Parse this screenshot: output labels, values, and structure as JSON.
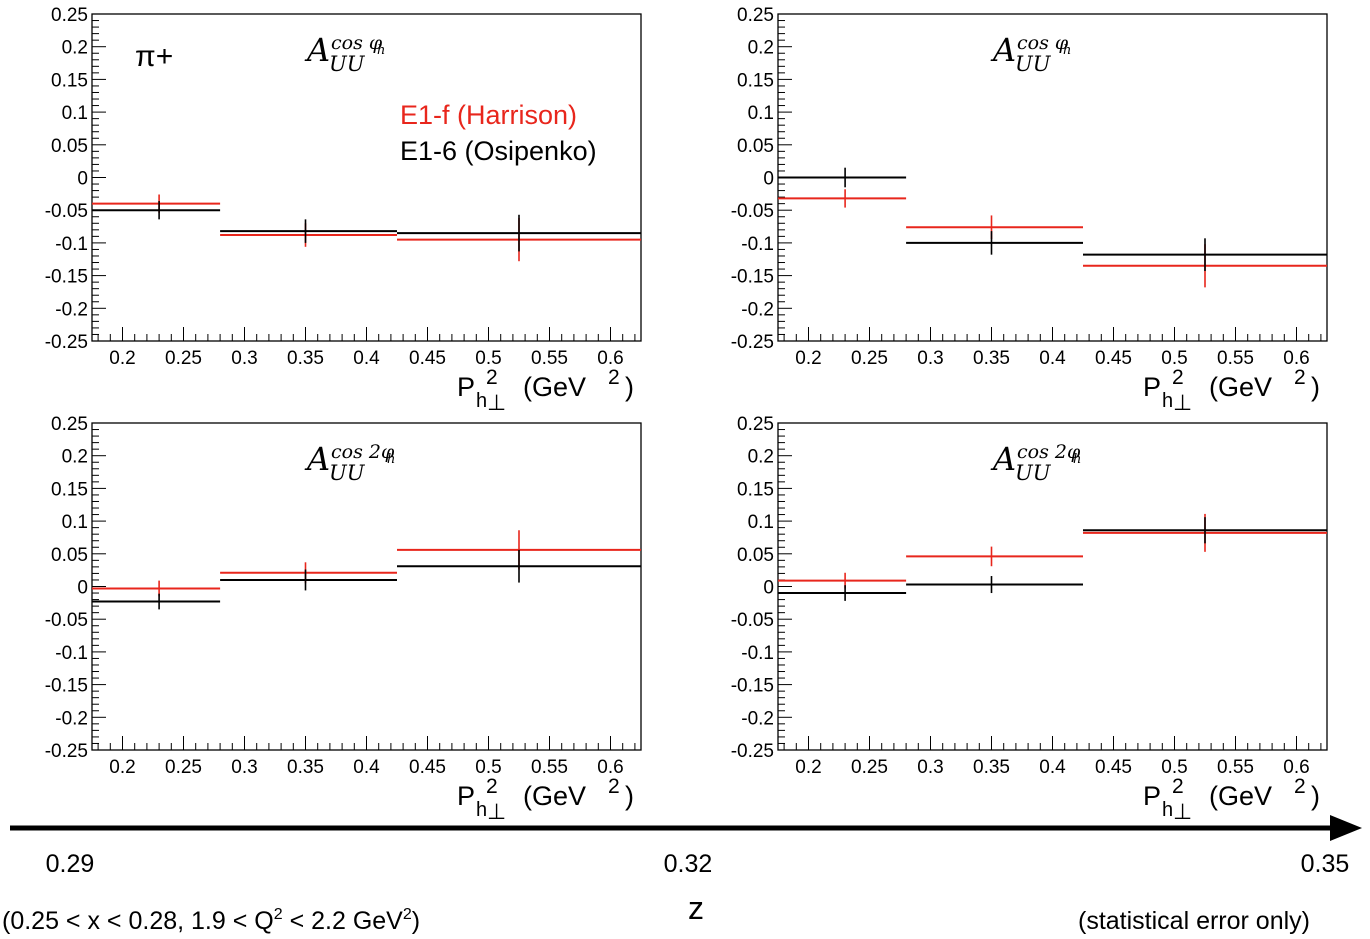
{
  "figure": {
    "particle_label": "π+",
    "legend": [
      {
        "name": "E1-f (Harrison)",
        "color": "#e8261c"
      },
      {
        "name": "E1-6 (Osipenko)",
        "color": "#000000"
      }
    ],
    "z_axis": {
      "ticks": [
        "0.29",
        "0.32",
        "0.35"
      ],
      "label": "z"
    },
    "kinematics_note": {
      "pre": "(0.25 < x < 0.28, 1.9 < Q",
      "sup1": "2",
      "mid": " < 2.2 GeV",
      "sup2": "2",
      "post": ")"
    },
    "error_note": "(statistical error only)",
    "colors": {
      "red": "#e8261c",
      "black": "#000000"
    }
  },
  "chart_data": [
    {
      "type": "scatter",
      "panel": "top-left",
      "z": "0.29",
      "title": {
        "base": "A",
        "sub": "UU",
        "sup": "cos φ",
        "sup_sub": "h"
      },
      "xlabel": {
        "p": "P",
        "p_sub": "h",
        "p_perp": "⊥",
        "p_sup": "2",
        "units": "(GeV",
        "units_sup": "2",
        "close": ")"
      },
      "xlim": [
        0.175,
        0.625
      ],
      "ylim": [
        -0.25,
        0.25
      ],
      "x_ticks": [
        "0.2",
        "0.25",
        "0.3",
        "0.35",
        "0.4",
        "0.45",
        "0.5",
        "0.55",
        "0.6"
      ],
      "y_ticks": [
        "0.25",
        "0.2",
        "0.15",
        "0.1",
        "0.05",
        "0",
        "-0.05",
        "-0.1",
        "-0.15",
        "-0.2",
        "-0.25"
      ],
      "series": [
        {
          "name": "E1-f (Harrison)",
          "color": "#e8261c",
          "points": [
            {
              "x_low": 0.175,
              "x_high": 0.28,
              "x": 0.23,
              "y": -0.04,
              "err": 0.014
            },
            {
              "x_low": 0.28,
              "x_high": 0.425,
              "x": 0.35,
              "y": -0.088,
              "err": 0.018
            },
            {
              "x_low": 0.425,
              "x_high": 0.625,
              "x": 0.525,
              "y": -0.095,
              "err": 0.033
            }
          ]
        },
        {
          "name": "E1-6 (Osipenko)",
          "color": "#000000",
          "points": [
            {
              "x_low": 0.175,
              "x_high": 0.28,
              "x": 0.23,
              "y": -0.05,
              "err": 0.014
            },
            {
              "x_low": 0.28,
              "x_high": 0.425,
              "x": 0.35,
              "y": -0.082,
              "err": 0.018
            },
            {
              "x_low": 0.425,
              "x_high": 0.625,
              "x": 0.525,
              "y": -0.085,
              "err": 0.028
            }
          ]
        }
      ]
    },
    {
      "type": "scatter",
      "panel": "top-right",
      "z": "0.35",
      "title": {
        "base": "A",
        "sub": "UU",
        "sup": "cos φ",
        "sup_sub": "h"
      },
      "xlabel": {
        "p": "P",
        "p_sub": "h",
        "p_perp": "⊥",
        "p_sup": "2",
        "units": "(GeV",
        "units_sup": "2",
        "close": ")"
      },
      "xlim": [
        0.175,
        0.625
      ],
      "ylim": [
        -0.25,
        0.25
      ],
      "x_ticks": [
        "0.2",
        "0.25",
        "0.3",
        "0.35",
        "0.4",
        "0.45",
        "0.5",
        "0.55",
        "0.6"
      ],
      "y_ticks": [
        "0.25",
        "0.2",
        "0.15",
        "0.1",
        "0.05",
        "0",
        "-0.05",
        "-0.1",
        "-0.15",
        "-0.2",
        "-0.25"
      ],
      "series": [
        {
          "name": "E1-f (Harrison)",
          "color": "#e8261c",
          "points": [
            {
              "x_low": 0.175,
              "x_high": 0.28,
              "x": 0.23,
              "y": -0.032,
              "err": 0.014
            },
            {
              "x_low": 0.28,
              "x_high": 0.425,
              "x": 0.35,
              "y": -0.076,
              "err": 0.018
            },
            {
              "x_low": 0.425,
              "x_high": 0.625,
              "x": 0.525,
              "y": -0.135,
              "err": 0.033
            }
          ]
        },
        {
          "name": "E1-6 (Osipenko)",
          "color": "#000000",
          "points": [
            {
              "x_low": 0.175,
              "x_high": 0.28,
              "x": 0.23,
              "y": 0.0,
              "err": 0.015
            },
            {
              "x_low": 0.28,
              "x_high": 0.425,
              "x": 0.35,
              "y": -0.1,
              "err": 0.018
            },
            {
              "x_low": 0.425,
              "x_high": 0.625,
              "x": 0.525,
              "y": -0.118,
              "err": 0.025
            }
          ]
        }
      ]
    },
    {
      "type": "scatter",
      "panel": "bottom-left",
      "z": "0.29",
      "title": {
        "base": "A",
        "sub": "UU",
        "sup": "cos 2φ",
        "sup_sub": "h"
      },
      "xlabel": {
        "p": "P",
        "p_sub": "h",
        "p_perp": "⊥",
        "p_sup": "2",
        "units": "(GeV",
        "units_sup": "2",
        "close": ")"
      },
      "xlim": [
        0.175,
        0.625
      ],
      "ylim": [
        -0.25,
        0.25
      ],
      "x_ticks": [
        "0.2",
        "0.25",
        "0.3",
        "0.35",
        "0.4",
        "0.45",
        "0.5",
        "0.55",
        "0.6"
      ],
      "y_ticks": [
        "0.25",
        "0.2",
        "0.15",
        "0.1",
        "0.05",
        "0",
        "-0.05",
        "-0.1",
        "-0.15",
        "-0.2",
        "-0.25"
      ],
      "series": [
        {
          "name": "E1-f (Harrison)",
          "color": "#e8261c",
          "points": [
            {
              "x_low": 0.175,
              "x_high": 0.28,
              "x": 0.23,
              "y": -0.003,
              "err": 0.012
            },
            {
              "x_low": 0.28,
              "x_high": 0.425,
              "x": 0.35,
              "y": 0.021,
              "err": 0.016
            },
            {
              "x_low": 0.425,
              "x_high": 0.625,
              "x": 0.525,
              "y": 0.056,
              "err": 0.03
            }
          ]
        },
        {
          "name": "E1-6 (Osipenko)",
          "color": "#000000",
          "points": [
            {
              "x_low": 0.175,
              "x_high": 0.28,
              "x": 0.23,
              "y": -0.023,
              "err": 0.012
            },
            {
              "x_low": 0.28,
              "x_high": 0.425,
              "x": 0.35,
              "y": 0.01,
              "err": 0.016
            },
            {
              "x_low": 0.425,
              "x_high": 0.625,
              "x": 0.525,
              "y": 0.031,
              "err": 0.025
            }
          ]
        }
      ]
    },
    {
      "type": "scatter",
      "panel": "bottom-right",
      "z": "0.35",
      "title": {
        "base": "A",
        "sub": "UU",
        "sup": "cos 2φ",
        "sup_sub": "h"
      },
      "xlabel": {
        "p": "P",
        "p_sub": "h",
        "p_perp": "⊥",
        "p_sup": "2",
        "units": "(GeV",
        "units_sup": "2",
        "close": ")"
      },
      "xlim": [
        0.175,
        0.625
      ],
      "ylim": [
        -0.25,
        0.25
      ],
      "x_ticks": [
        "0.2",
        "0.25",
        "0.3",
        "0.35",
        "0.4",
        "0.45",
        "0.5",
        "0.55",
        "0.6"
      ],
      "y_ticks": [
        "0.25",
        "0.2",
        "0.15",
        "0.1",
        "0.05",
        "0",
        "-0.05",
        "-0.1",
        "-0.15",
        "-0.2",
        "-0.25"
      ],
      "series": [
        {
          "name": "E1-f (Harrison)",
          "color": "#e8261c",
          "points": [
            {
              "x_low": 0.175,
              "x_high": 0.28,
              "x": 0.23,
              "y": 0.009,
              "err": 0.012
            },
            {
              "x_low": 0.28,
              "x_high": 0.425,
              "x": 0.35,
              "y": 0.046,
              "err": 0.015
            },
            {
              "x_low": 0.425,
              "x_high": 0.625,
              "x": 0.525,
              "y": 0.082,
              "err": 0.029
            }
          ]
        },
        {
          "name": "E1-6 (Osipenko)",
          "color": "#000000",
          "points": [
            {
              "x_low": 0.175,
              "x_high": 0.28,
              "x": 0.23,
              "y": -0.01,
              "err": 0.012
            },
            {
              "x_low": 0.28,
              "x_high": 0.425,
              "x": 0.35,
              "y": 0.003,
              "err": 0.013
            },
            {
              "x_low": 0.425,
              "x_high": 0.625,
              "x": 0.525,
              "y": 0.086,
              "err": 0.02
            }
          ]
        }
      ]
    }
  ]
}
